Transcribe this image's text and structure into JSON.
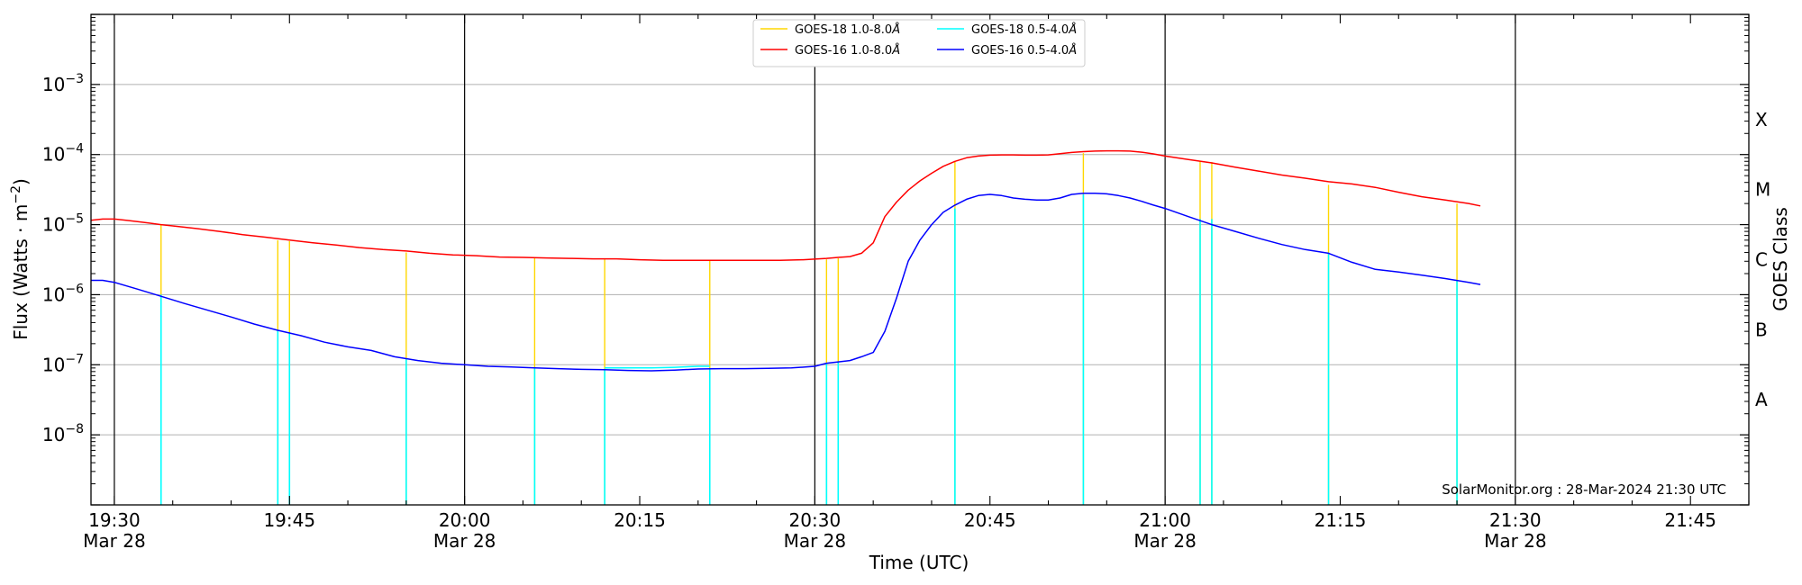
{
  "chart_data": {
    "type": "line",
    "ylabel_main": "Flux (Watts · m",
    "ylabel_sup": "−2",
    "ylabel_close": ")",
    "xlabel": "Time (UTC)",
    "ylabel_right": "GOES Class",
    "credit": "SolarMonitor.org : 28-Mar-2024 21:30 UTC",
    "x_range_minutes": [
      1168,
      1310
    ],
    "y_log_range": [
      -9,
      -2
    ],
    "x_ticks": [
      {
        "minute": 1170,
        "time": "19:30",
        "date": "Mar 28"
      },
      {
        "minute": 1185,
        "time": "19:45",
        "date": ""
      },
      {
        "minute": 1200,
        "time": "20:00",
        "date": "Mar 28"
      },
      {
        "minute": 1215,
        "time": "20:15",
        "date": ""
      },
      {
        "minute": 1230,
        "time": "20:30",
        "date": "Mar 28"
      },
      {
        "minute": 1245,
        "time": "20:45",
        "date": ""
      },
      {
        "minute": 1260,
        "time": "21:00",
        "date": "Mar 28"
      },
      {
        "minute": 1275,
        "time": "21:15",
        "date": ""
      },
      {
        "minute": 1290,
        "time": "21:30",
        "date": "Mar 28"
      },
      {
        "minute": 1305,
        "time": "21:45",
        "date": ""
      }
    ],
    "y_ticks": [
      {
        "exp": -8,
        "label": "10",
        "sup": "−8"
      },
      {
        "exp": -7,
        "label": "10",
        "sup": "−7"
      },
      {
        "exp": -6,
        "label": "10",
        "sup": "−6"
      },
      {
        "exp": -5,
        "label": "10",
        "sup": "−5"
      },
      {
        "exp": -4,
        "label": "10",
        "sup": "−4"
      },
      {
        "exp": -3,
        "label": "10",
        "sup": "−3"
      }
    ],
    "goes_classes": [
      {
        "exp": -7.5,
        "label": "A"
      },
      {
        "exp": -6.5,
        "label": "B"
      },
      {
        "exp": -5.5,
        "label": "C"
      },
      {
        "exp": -4.5,
        "label": "M"
      },
      {
        "exp": -3.5,
        "label": "X"
      }
    ],
    "day_lines_minutes": [
      1170,
      1200,
      1230,
      1260,
      1290
    ],
    "legend": [
      {
        "name": "GOES-18 1.0-8.0",
        "color": "#FFD700"
      },
      {
        "name": "GOES-18 0.5-4.0",
        "color": "#00FFFF"
      },
      {
        "name": "GOES-16 1.0-8.0",
        "color": "#FF0000"
      },
      {
        "name": "GOES-16 0.5-4.0",
        "color": "#0000FF"
      }
    ],
    "legend_unit": "Å",
    "series": [
      {
        "name": "GOES-16 1.0-8.0",
        "color": "#FF0000",
        "x": [
          1168,
          1169,
          1170,
          1171,
          1172,
          1173,
          1174,
          1175,
          1177,
          1179,
          1181,
          1183,
          1185,
          1187,
          1189,
          1191,
          1193,
          1195,
          1197,
          1199,
          1201,
          1203,
          1205,
          1207,
          1209,
          1211,
          1213,
          1215,
          1217,
          1219,
          1221,
          1223,
          1225,
          1227,
          1229,
          1231,
          1232,
          1233,
          1234,
          1235,
          1236,
          1237,
          1238,
          1239,
          1240,
          1241,
          1242,
          1243,
          1244,
          1245,
          1246,
          1247,
          1248,
          1249,
          1250,
          1251,
          1252,
          1253,
          1254,
          1255,
          1256,
          1257,
          1258,
          1259,
          1260,
          1262,
          1264,
          1266,
          1268,
          1270,
          1272,
          1274,
          1276,
          1278,
          1280,
          1282,
          1284,
          1286,
          1287
        ],
        "y": [
          1.15e-05,
          1.2e-05,
          1.2e-05,
          1.15e-05,
          1.1e-05,
          1.05e-05,
          1e-05,
          9.6e-06,
          8.8e-06,
          8e-06,
          7.2e-06,
          6.6e-06,
          6e-06,
          5.5e-06,
          5.1e-06,
          4.7e-06,
          4.4e-06,
          4.2e-06,
          3.9e-06,
          3.7e-06,
          3.6e-06,
          3.45e-06,
          3.4e-06,
          3.35e-06,
          3.3e-06,
          3.25e-06,
          3.25e-06,
          3.15e-06,
          3.1e-06,
          3.1e-06,
          3.1e-06,
          3.1e-06,
          3.1e-06,
          3.1e-06,
          3.15e-06,
          3.3e-06,
          3.4e-06,
          3.5e-06,
          3.9e-06,
          5.5e-06,
          1.3e-05,
          2.1e-05,
          3.1e-05,
          4.2e-05,
          5.4e-05,
          6.8e-05,
          8e-05,
          9e-05,
          9.5e-05,
          9.8e-05,
          9.9e-05,
          9.9e-05,
          9.8e-05,
          9.8e-05,
          9.9e-05,
          0.000103,
          0.000107,
          0.00011,
          0.000112,
          0.000113,
          0.000113,
          0.000112,
          0.000108,
          0.000102,
          9.5e-05,
          8.5e-05,
          7.6e-05,
          6.6e-05,
          5.8e-05,
          5.1e-05,
          4.6e-05,
          4.1e-05,
          3.8e-05,
          3.4e-05,
          2.9e-05,
          2.5e-05,
          2.25e-05,
          2e-05,
          1.85e-05
        ]
      },
      {
        "name": "GOES-16 0.5-4.0",
        "color": "#0000FF",
        "x": [
          1168,
          1169,
          1170,
          1172,
          1174,
          1176,
          1178,
          1180,
          1182,
          1184,
          1186,
          1188,
          1190,
          1192,
          1194,
          1196,
          1198,
          1200,
          1202,
          1204,
          1206,
          1208,
          1210,
          1212,
          1214,
          1216,
          1218,
          1220,
          1222,
          1224,
          1226,
          1228,
          1230,
          1231,
          1232,
          1233,
          1234,
          1235,
          1236,
          1237,
          1238,
          1239,
          1240,
          1241,
          1242,
          1243,
          1244,
          1245,
          1246,
          1247,
          1248,
          1249,
          1250,
          1251,
          1252,
          1253,
          1254,
          1255,
          1256,
          1257,
          1258,
          1259,
          1260,
          1262,
          1264,
          1266,
          1268,
          1270,
          1272,
          1274,
          1276,
          1278,
          1280,
          1282,
          1284,
          1286,
          1287
        ],
        "y": [
          1.6e-06,
          1.6e-06,
          1.5e-06,
          1.2e-06,
          9.5e-07,
          7.5e-07,
          6e-07,
          4.8e-07,
          3.8e-07,
          3.1e-07,
          2.6e-07,
          2.1e-07,
          1.8e-07,
          1.6e-07,
          1.3e-07,
          1.15e-07,
          1.05e-07,
          1e-07,
          9.5e-08,
          9.3e-08,
          9e-08,
          8.8e-08,
          8.6e-08,
          8.5e-08,
          8.3e-08,
          8.2e-08,
          8.4e-08,
          8.7e-08,
          8.8e-08,
          8.8e-08,
          8.9e-08,
          9e-08,
          9.5e-08,
          1.05e-07,
          1.1e-07,
          1.15e-07,
          1.3e-07,
          1.5e-07,
          3e-07,
          9e-07,
          3e-06,
          6e-06,
          1e-05,
          1.5e-05,
          1.9e-05,
          2.3e-05,
          2.6e-05,
          2.7e-05,
          2.6e-05,
          2.4e-05,
          2.3e-05,
          2.25e-05,
          2.25e-05,
          2.4e-05,
          2.7e-05,
          2.8e-05,
          2.8e-05,
          2.75e-05,
          2.6e-05,
          2.4e-05,
          2.15e-05,
          1.9e-05,
          1.7e-05,
          1.3e-05,
          1e-05,
          8e-06,
          6.4e-06,
          5.2e-06,
          4.4e-06,
          3.9e-06,
          2.9e-06,
          2.3e-06,
          2.1e-06,
          1.9e-06,
          1.7e-06,
          1.5e-06,
          1.4e-06
        ]
      },
      {
        "name": "GOES-18 0.5-4.0",
        "color": "#00FFFF",
        "x": [
          1212,
          1214,
          1216,
          1218,
          1220,
          1221
        ],
        "y": [
          9e-08,
          9e-08,
          9e-08,
          9.2e-08,
          9.5e-08,
          9.5e-08
        ]
      }
    ],
    "spikes": {
      "minutes": [
        1174,
        1184,
        1185,
        1195,
        1206,
        1212,
        1221,
        1231,
        1232,
        1242,
        1253,
        1263,
        1264,
        1274,
        1285
      ],
      "goes18_long_top": [
        1e-05,
        6e-06,
        5.8e-06,
        4e-06,
        3.3e-06,
        3.2e-06,
        3.1e-06,
        3.2e-06,
        3.3e-06,
        8e-05,
        0.000105,
        8e-05,
        7.8e-05,
        3.7e-05,
        2e-05
      ],
      "goes18_short_top": [
        1e-06,
        3.1e-07,
        2.9e-07,
        1.2e-07,
        9.2e-08,
        8.5e-08,
        8.8e-08,
        1.05e-07,
        1.1e-07,
        1.7e-05,
        2.7e-05,
        1.2e-05,
        1.2e-05,
        4e-06,
        1.6e-06
      ]
    }
  }
}
